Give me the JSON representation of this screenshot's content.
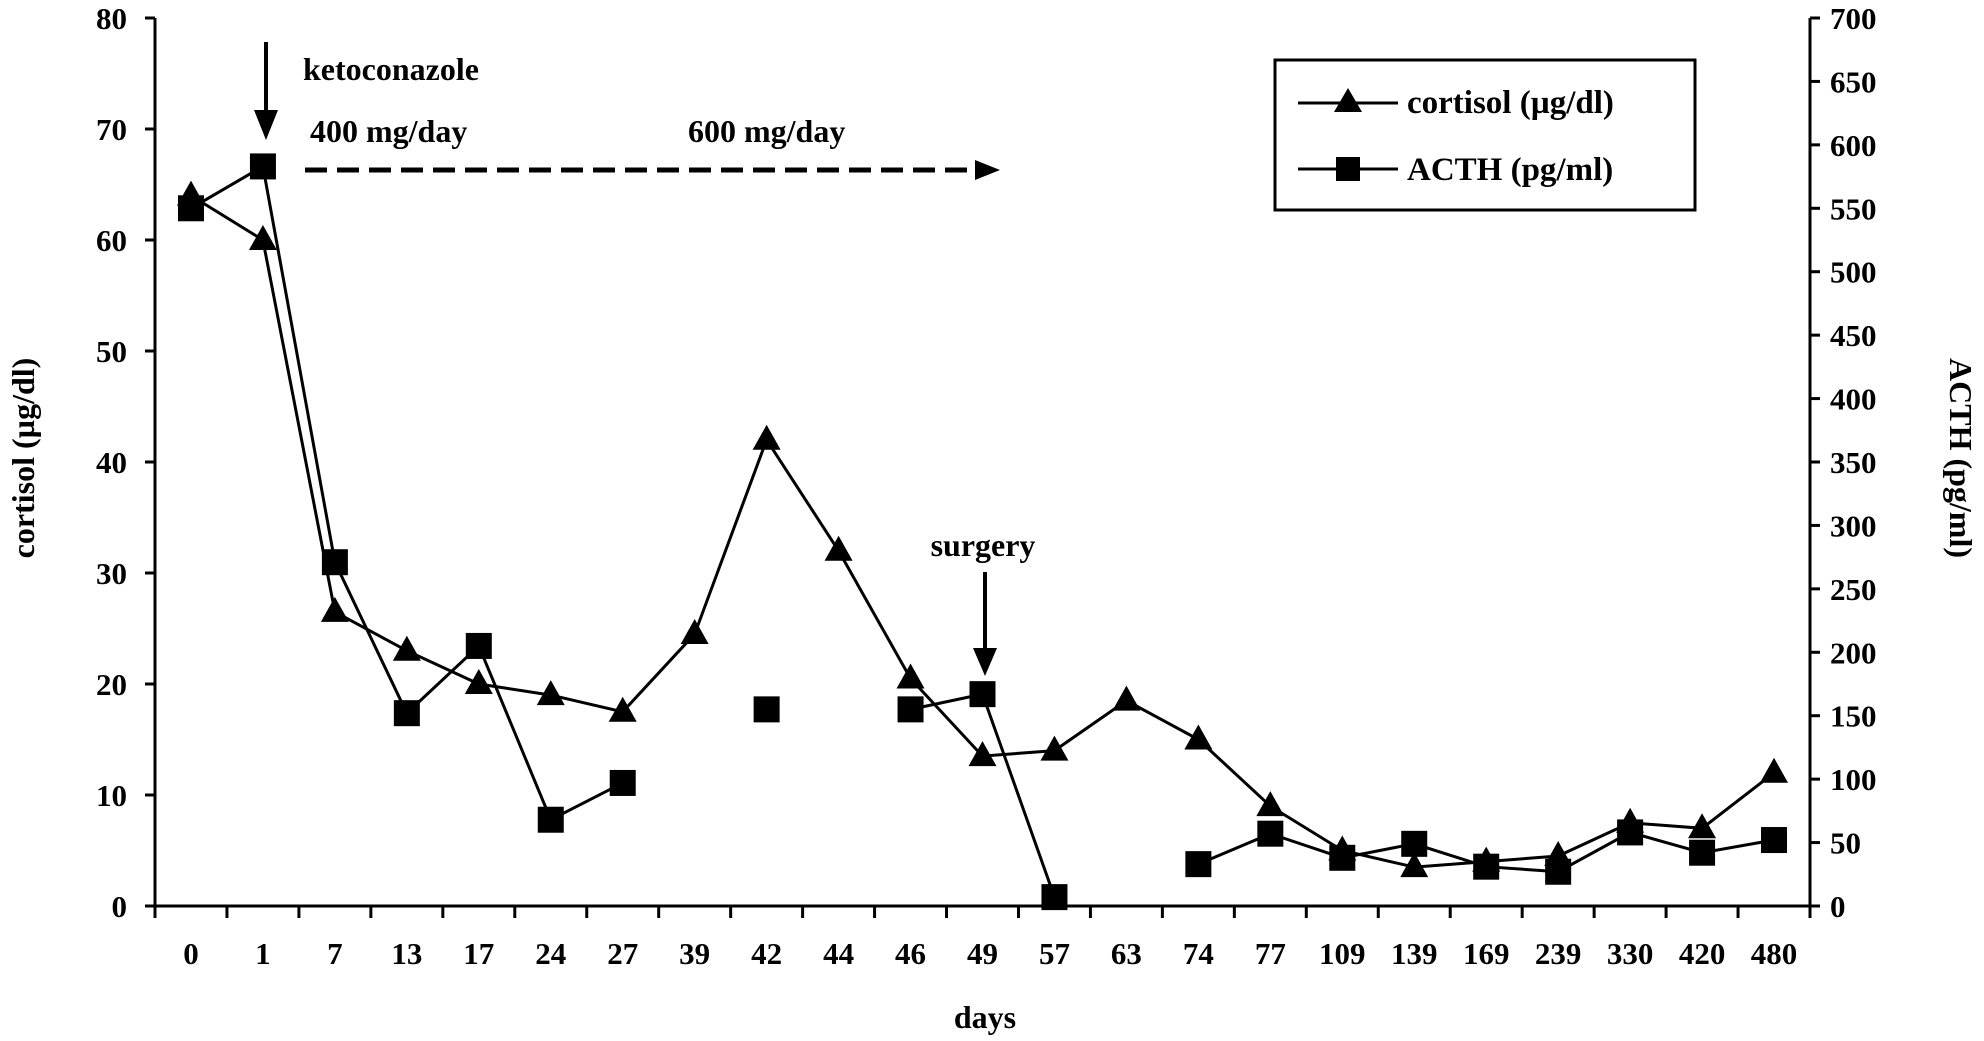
{
  "chart_data": {
    "type": "line",
    "categories": [
      "0",
      "1",
      "7",
      "13",
      "17",
      "24",
      "27",
      "39",
      "42",
      "44",
      "46",
      "49",
      "57",
      "63",
      "74",
      "77",
      "109",
      "139",
      "169",
      "239",
      "330",
      "420",
      "480"
    ],
    "xlabel": "days",
    "ylabel": "cortisol  (µg/dl)",
    "y2label": "ACTH (pg/ml)",
    "ylim": [
      0,
      80
    ],
    "y2lim": [
      0,
      700
    ],
    "y_ticks": [
      "0",
      "10",
      "20",
      "30",
      "40",
      "50",
      "60",
      "70",
      "80"
    ],
    "y2_ticks": [
      "0",
      "50",
      "100",
      "150",
      "200",
      "250",
      "300",
      "350",
      "400",
      "450",
      "500",
      "550",
      "600",
      "650",
      "700"
    ],
    "grid": false,
    "legend_position": "top-right",
    "series": [
      {
        "name": "cortisol (µg/dl)",
        "axis": "left",
        "marker": "triangle",
        "color": "#000000",
        "values": [
          64,
          60,
          26.5,
          23,
          20,
          19,
          17.5,
          24.5,
          42,
          32,
          20.5,
          13.5,
          14,
          18.5,
          15,
          9,
          5,
          3.5,
          4,
          4.5,
          7.5,
          7,
          12
        ]
      },
      {
        "name": "ACTH (pg/ml)",
        "axis": "right",
        "marker": "square",
        "color": "#000000",
        "values": [
          550,
          583,
          271,
          152,
          205,
          68,
          97,
          null,
          155,
          null,
          155,
          167,
          7,
          null,
          33,
          57,
          38,
          49,
          31,
          27,
          58,
          42,
          52
        ]
      }
    ],
    "annotations": {
      "drug": "ketoconazole",
      "dose1": "400 mg/day",
      "dose2": "600 mg/day",
      "event": "surgery"
    }
  }
}
